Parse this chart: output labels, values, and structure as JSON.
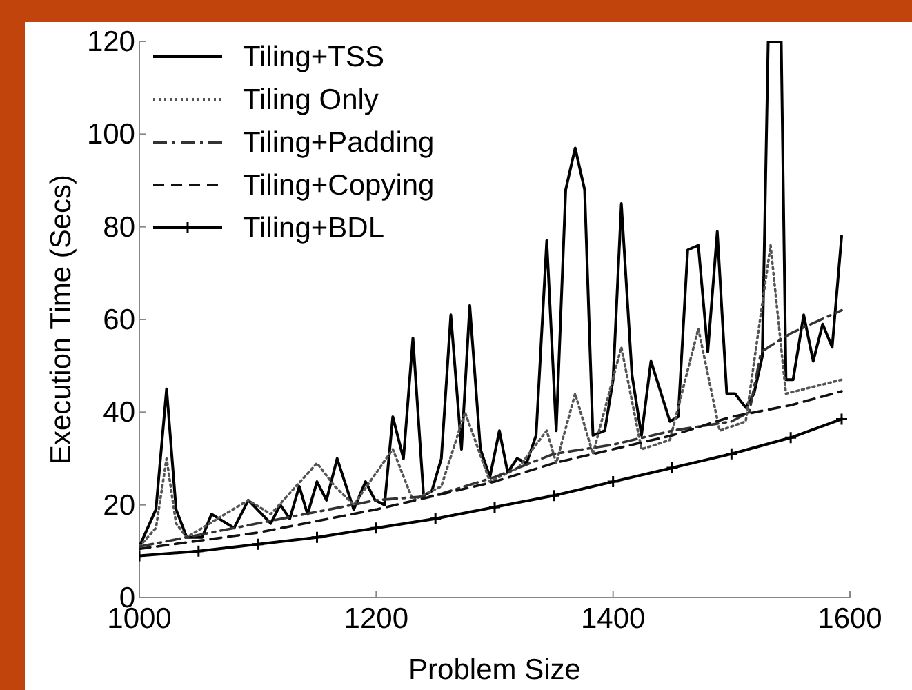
{
  "chart_data": {
    "type": "line",
    "xlabel": "Problem Size",
    "ylabel": "Execution Time (Secs)",
    "xlim": [
      1000,
      1600
    ],
    "ylim": [
      0,
      120
    ],
    "xticks": [
      1000,
      1200,
      1400,
      1600
    ],
    "yticks": [
      0,
      20,
      40,
      60,
      80,
      100,
      120
    ],
    "grid": false,
    "legend": "top left",
    "series": [
      {
        "name": "Tiling+TSS",
        "color": "#000000",
        "line_style": "solid",
        "marker": "none",
        "x": [
          1000,
          1014,
          1023,
          1031,
          1040,
          1053,
          1061,
          1080,
          1092,
          1111,
          1119,
          1127,
          1135,
          1142,
          1150,
          1158,
          1167,
          1181,
          1191,
          1199,
          1207,
          1214,
          1223,
          1231,
          1240,
          1247,
          1255,
          1263,
          1272,
          1279,
          1288,
          1296,
          1304,
          1311,
          1319,
          1327,
          1335,
          1344,
          1352,
          1360,
          1368,
          1376,
          1383,
          1393,
          1400,
          1407,
          1416,
          1424,
          1432,
          1448,
          1455,
          1463,
          1472,
          1480,
          1488,
          1496,
          1503,
          1512,
          1519,
          1526,
          1531,
          1542,
          1546,
          1552,
          1561,
          1569,
          1577,
          1585,
          1593
        ],
        "values": [
          11,
          19,
          45,
          19,
          13,
          13,
          18,
          15,
          21,
          16,
          20,
          17,
          24,
          18,
          25,
          21,
          30,
          19,
          25,
          21,
          20,
          39,
          30,
          56,
          22,
          23,
          30,
          61,
          32,
          63,
          32,
          26,
          36,
          27,
          30,
          29,
          35,
          77,
          36,
          88,
          97,
          88,
          35,
          36,
          47,
          85,
          48,
          35,
          51,
          38,
          39,
          75,
          76,
          53,
          79,
          44,
          44,
          41,
          44,
          52,
          120,
          120,
          47,
          47,
          61,
          51,
          59,
          54,
          78
        ]
      },
      {
        "name": "Tiling Only",
        "color": "#555555",
        "line_style": "dotted",
        "marker": "none",
        "x": [
          1000,
          1014,
          1023,
          1031,
          1040,
          1092,
          1111,
          1150,
          1165,
          1181,
          1214,
          1231,
          1255,
          1275,
          1296,
          1320,
          1344,
          1352,
          1368,
          1383,
          1407,
          1424,
          1448,
          1472,
          1490,
          1512,
          1533,
          1546,
          1593
        ],
        "values": [
          11,
          15,
          30,
          16,
          13,
          21,
          18,
          29,
          24,
          20,
          32,
          21,
          24,
          40,
          25,
          28,
          36,
          29,
          44,
          31,
          54,
          32,
          34,
          58,
          36,
          38,
          76,
          44,
          47
        ]
      },
      {
        "name": "Tiling+Padding",
        "color": "#333333",
        "line_style": "dashdot",
        "marker": "none",
        "x": [
          1000,
          1100,
          1200,
          1250,
          1300,
          1350,
          1400,
          1450,
          1500,
          1515,
          1525,
          1550,
          1593
        ],
        "values": [
          11,
          16,
          21,
          22,
          26,
          31,
          33,
          36,
          38,
          40,
          53,
          57,
          62
        ]
      },
      {
        "name": "Tiling+Copying",
        "color": "#111111",
        "line_style": "dashed",
        "marker": "none",
        "x": [
          1000,
          1100,
          1200,
          1300,
          1350,
          1400,
          1450,
          1500,
          1550,
          1593
        ],
        "values": [
          10.5,
          14,
          19,
          25,
          29,
          32,
          35,
          39,
          41.5,
          44.5
        ]
      },
      {
        "name": "Tiling+BDL",
        "color": "#000000",
        "line_style": "solid",
        "marker": "cross",
        "x": [
          1000,
          1050,
          1100,
          1150,
          1200,
          1250,
          1300,
          1350,
          1400,
          1450,
          1500,
          1550,
          1593
        ],
        "values": [
          9,
          10,
          11.5,
          13,
          15,
          17,
          19.5,
          22,
          25,
          28,
          31,
          34.5,
          38.5
        ]
      }
    ]
  }
}
